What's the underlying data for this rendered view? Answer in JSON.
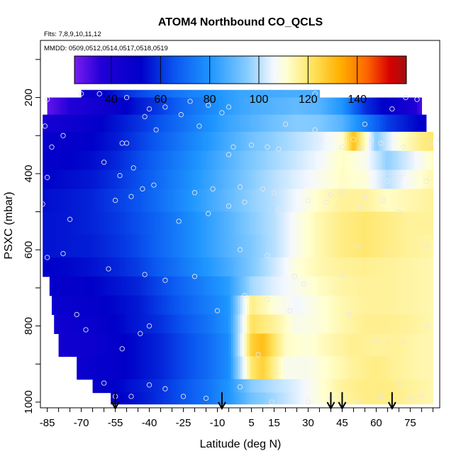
{
  "chart_data": {
    "type": "heatmap",
    "title": "ATOM4 Northbound CO_QCLS",
    "subtitle_flights": "Flts: 7,8,9,10,11,12",
    "subtitle_dates": "MMDD: 0509,0512,0514,0517,0518,0519",
    "xlabel": "Latitude (deg N)",
    "ylabel": "PSXC (mbar)",
    "x_ticks": [
      "-85",
      "-70",
      "-55",
      "-40",
      "-25",
      "-10",
      "5",
      "15",
      "30",
      "45",
      "60",
      "75"
    ],
    "x_tick_values": [
      -85,
      -70,
      -55,
      -40,
      -25,
      -10,
      5,
      15,
      30,
      45,
      60,
      75
    ],
    "y_ticks": [
      "200",
      "400",
      "600",
      "800",
      "1000"
    ],
    "y_tick_values": [
      200,
      400,
      600,
      800,
      1000
    ],
    "xlim": [
      -88,
      88
    ],
    "ylim": [
      1015,
      50
    ],
    "y_reversed": true,
    "colorbar": {
      "range": [
        25,
        160
      ],
      "tick_labels": [
        "40",
        "60",
        "80",
        "100",
        "120",
        "140"
      ],
      "tick_values": [
        40,
        60,
        80,
        100,
        120,
        140
      ]
    },
    "color_scale_note": "CO mixing ratio; purple/blue low, white ~100, yellow/orange/red high",
    "profile_bands": [
      {
        "p_top": 180,
        "p_bot": 200,
        "x": [
          -70,
          -60,
          -50,
          -40,
          -30,
          -20,
          -10,
          0,
          10,
          20,
          35
        ],
        "values": [
          45,
          52,
          60,
          66,
          72,
          76,
          80,
          84,
          85,
          86,
          86
        ]
      },
      {
        "p_top": 200,
        "p_bot": 245,
        "x": [
          -85,
          -75,
          -65,
          -55,
          -45,
          -35,
          -25,
          -15,
          -5,
          5,
          15,
          25,
          35,
          45,
          55,
          65,
          75,
          80
        ],
        "values": [
          28,
          35,
          42,
          48,
          56,
          62,
          70,
          76,
          82,
          86,
          88,
          90,
          88,
          80,
          60,
          50,
          40,
          30
        ]
      },
      {
        "p_top": 245,
        "p_bot": 290,
        "x": [
          -87,
          -75,
          -65,
          -55,
          -45,
          -35,
          -25,
          -15,
          -5,
          5,
          15,
          25,
          35,
          45,
          55,
          65,
          75,
          82
        ],
        "values": [
          40,
          45,
          50,
          55,
          60,
          66,
          72,
          78,
          84,
          88,
          92,
          95,
          94,
          88,
          75,
          62,
          55,
          50
        ]
      },
      {
        "p_top": 290,
        "p_bot": 340,
        "x": [
          -87,
          -75,
          -65,
          -55,
          -45,
          -35,
          -25,
          -15,
          -5,
          5,
          15,
          25,
          35,
          45,
          50,
          60,
          70,
          80,
          85
        ],
        "values": [
          48,
          50,
          52,
          56,
          62,
          68,
          74,
          80,
          86,
          92,
          96,
          100,
          104,
          110,
          130,
          95,
          110,
          118,
          120
        ]
      },
      {
        "p_top": 340,
        "p_bot": 390,
        "x": [
          -87,
          -75,
          -65,
          -55,
          -45,
          -35,
          -25,
          -15,
          -5,
          5,
          15,
          25,
          35,
          45,
          55,
          65,
          75,
          85
        ],
        "values": [
          50,
          52,
          54,
          58,
          64,
          70,
          76,
          82,
          88,
          94,
          98,
          102,
          106,
          112,
          108,
          96,
          104,
          112
        ]
      },
      {
        "p_top": 390,
        "p_bot": 440,
        "x": [
          -87,
          -75,
          -65,
          -55,
          -45,
          -35,
          -25,
          -15,
          -5,
          5,
          15,
          25,
          35,
          45,
          55,
          65,
          75,
          85
        ],
        "values": [
          52,
          54,
          56,
          60,
          65,
          71,
          77,
          83,
          89,
          95,
          100,
          104,
          108,
          112,
          110,
          100,
          108,
          114
        ]
      },
      {
        "p_top": 440,
        "p_bot": 500,
        "x": [
          -87,
          -75,
          -65,
          -55,
          -45,
          -35,
          -25,
          -15,
          -5,
          5,
          15,
          25,
          35,
          45,
          55,
          65,
          75,
          85
        ],
        "values": [
          54,
          56,
          58,
          62,
          66,
          72,
          78,
          84,
          90,
          96,
          100,
          106,
          112,
          116,
          116,
          112,
          114,
          116
        ]
      },
      {
        "p_top": 500,
        "p_bot": 560,
        "x": [
          -87,
          -75,
          -65,
          -55,
          -45,
          -35,
          -25,
          -15,
          -5,
          5,
          15,
          25,
          35,
          45,
          55,
          65,
          75,
          85
        ],
        "values": [
          55,
          56,
          58,
          61,
          65,
          70,
          76,
          82,
          88,
          95,
          100,
          108,
          114,
          118,
          120,
          118,
          116,
          116
        ]
      },
      {
        "p_top": 560,
        "p_bot": 620,
        "x": [
          -87,
          -75,
          -65,
          -55,
          -45,
          -35,
          -25,
          -15,
          -5,
          5,
          15,
          25,
          35,
          45,
          55,
          65,
          75,
          85
        ],
        "values": [
          55,
          56,
          57,
          60,
          64,
          70,
          76,
          82,
          88,
          94,
          100,
          108,
          114,
          118,
          120,
          118,
          116,
          115
        ]
      },
      {
        "p_top": 620,
        "p_bot": 670,
        "x": [
          -87,
          -75,
          -65,
          -55,
          -45,
          -35,
          -25,
          -15,
          -5,
          5,
          15,
          25,
          35,
          45,
          55,
          65,
          75,
          85
        ],
        "values": [
          52,
          53,
          55,
          58,
          62,
          68,
          74,
          80,
          86,
          94,
          102,
          110,
          114,
          116,
          117,
          116,
          115,
          114
        ]
      },
      {
        "p_top": 670,
        "p_bot": 720,
        "x": [
          -84,
          -75,
          -65,
          -55,
          -45,
          -35,
          -25,
          -15,
          -5,
          5,
          15,
          25,
          35,
          45,
          55,
          65,
          75,
          85
        ],
        "values": [
          50,
          50,
          52,
          55,
          58,
          64,
          70,
          76,
          82,
          98,
          104,
          108,
          112,
          115,
          116,
          116,
          115,
          114
        ]
      },
      {
        "p_top": 720,
        "p_bot": 770,
        "x": [
          -83,
          -75,
          -65,
          -55,
          -45,
          -35,
          -25,
          -15,
          -5,
          5,
          15,
          25,
          35,
          45,
          55,
          65,
          75,
          85
        ],
        "values": [
          47,
          48,
          50,
          53,
          56,
          62,
          68,
          74,
          80,
          118,
          110,
          106,
          110,
          114,
          116,
          116,
          115,
          114
        ]
      },
      {
        "p_top": 770,
        "p_bot": 820,
        "x": [
          -82,
          -75,
          -65,
          -55,
          -45,
          -35,
          -25,
          -15,
          -5,
          5,
          15,
          25,
          35,
          45,
          55,
          65,
          75,
          85
        ],
        "values": [
          44,
          46,
          48,
          52,
          56,
          60,
          66,
          72,
          80,
          122,
          116,
          108,
          110,
          114,
          117,
          117,
          116,
          114
        ]
      },
      {
        "p_top": 820,
        "p_bot": 880,
        "x": [
          -80,
          -72,
          -65,
          -55,
          -45,
          -35,
          -25,
          -15,
          -5,
          5,
          10,
          20,
          30,
          40,
          50,
          60,
          70,
          80,
          85
        ],
        "values": [
          44,
          45,
          46,
          50,
          54,
          58,
          64,
          70,
          78,
          126,
          130,
          112,
          110,
          114,
          117,
          116,
          116,
          114,
          114
        ]
      },
      {
        "p_top": 880,
        "p_bot": 940,
        "x": [
          -72,
          -65,
          -55,
          -45,
          -35,
          -25,
          -15,
          -5,
          5,
          10,
          20,
          30,
          40,
          50,
          60,
          70,
          80,
          85
        ],
        "values": [
          46,
          48,
          50,
          54,
          58,
          64,
          70,
          78,
          120,
          126,
          108,
          108,
          112,
          116,
          118,
          116,
          114,
          114
        ]
      },
      {
        "p_top": 940,
        "p_bot": 975,
        "x": [
          -65,
          -55,
          -45,
          -35,
          -25,
          -15,
          -5,
          5,
          15,
          25,
          35,
          45,
          55,
          65,
          75,
          85
        ],
        "values": [
          48,
          52,
          56,
          60,
          66,
          72,
          80,
          95,
          100,
          104,
          110,
          116,
          118,
          118,
          116,
          114
        ]
      },
      {
        "p_top": 975,
        "p_bot": 1005,
        "x": [
          -57,
          -45,
          -35,
          -25,
          -15,
          -5,
          5,
          15,
          25,
          35,
          45,
          55,
          65,
          75,
          85
        ],
        "values": [
          50,
          55,
          60,
          66,
          72,
          80,
          92,
          98,
          104,
          110,
          115,
          118,
          118,
          116,
          114
        ]
      }
    ],
    "sample_points": [
      [
        -85,
        205
      ],
      [
        -70,
        190
      ],
      [
        -62,
        190
      ],
      [
        -50,
        200
      ],
      [
        -40,
        230
      ],
      [
        -33,
        225
      ],
      [
        -22,
        210
      ],
      [
        -14,
        220
      ],
      [
        -5,
        225
      ],
      [
        33,
        190
      ],
      [
        -86,
        275
      ],
      [
        -78,
        300
      ],
      [
        -42,
        250
      ],
      [
        -26,
        245
      ],
      [
        -8,
        240
      ],
      [
        -37,
        285
      ],
      [
        -18,
        275
      ],
      [
        20,
        270
      ],
      [
        33,
        285
      ],
      [
        55,
        270
      ],
      [
        73,
        200
      ],
      [
        78,
        205
      ],
      [
        67,
        230
      ],
      [
        -83,
        330
      ],
      [
        -60,
        370
      ],
      [
        -52,
        320
      ],
      [
        -50,
        320
      ],
      [
        -47,
        385
      ],
      [
        -5,
        350
      ],
      [
        -3,
        330
      ],
      [
        5,
        325
      ],
      [
        12,
        330
      ],
      [
        17,
        335
      ],
      [
        35,
        310
      ],
      [
        45,
        330
      ],
      [
        50,
        310
      ],
      [
        53,
        335
      ],
      [
        58,
        310
      ],
      [
        62,
        320
      ],
      [
        72,
        330
      ],
      [
        75,
        355
      ],
      [
        84,
        320
      ],
      [
        88,
        310
      ],
      [
        -85,
        410
      ],
      [
        -53,
        405
      ],
      [
        -43,
        440
      ],
      [
        -38,
        430
      ],
      [
        -20,
        450
      ],
      [
        -12,
        440
      ],
      [
        0,
        435
      ],
      [
        10,
        440
      ],
      [
        15,
        450
      ],
      [
        30,
        470
      ],
      [
        40,
        455
      ],
      [
        45,
        450
      ],
      [
        55,
        460
      ],
      [
        65,
        420
      ],
      [
        70,
        410
      ],
      [
        72,
        400
      ],
      [
        82,
        420
      ],
      [
        -87,
        480
      ],
      [
        -75,
        520
      ],
      [
        -55,
        470
      ],
      [
        -48,
        460
      ],
      [
        -27,
        525
      ],
      [
        -14,
        505
      ],
      [
        -5,
        485
      ],
      [
        2,
        475
      ],
      [
        17,
        495
      ],
      [
        38,
        475
      ],
      [
        53,
        490
      ],
      [
        63,
        470
      ],
      [
        70,
        500
      ],
      [
        -85,
        620
      ],
      [
        -78,
        610
      ],
      [
        -58,
        650
      ],
      [
        -42,
        665
      ],
      [
        -33,
        680
      ],
      [
        -20,
        670
      ],
      [
        0,
        600
      ],
      [
        12,
        615
      ],
      [
        24,
        670
      ],
      [
        28,
        690
      ],
      [
        45,
        670
      ],
      [
        52,
        590
      ],
      [
        65,
        610
      ],
      [
        82,
        590
      ],
      [
        -72,
        770
      ],
      [
        -68,
        810
      ],
      [
        -52,
        860
      ],
      [
        -44,
        820
      ],
      [
        -40,
        800
      ],
      [
        -10,
        760
      ],
      [
        2,
        720
      ],
      [
        12,
        730
      ],
      [
        22,
        760
      ],
      [
        48,
        770
      ],
      [
        60,
        840
      ],
      [
        65,
        840
      ],
      [
        72,
        840
      ],
      [
        83,
        800
      ],
      [
        -60,
        950
      ],
      [
        -55,
        985
      ],
      [
        -48,
        985
      ],
      [
        -40,
        955
      ],
      [
        -33,
        965
      ],
      [
        -25,
        985
      ],
      [
        -15,
        990
      ],
      [
        0,
        960
      ],
      [
        8,
        875
      ],
      [
        14,
        1000
      ],
      [
        30,
        1000
      ],
      [
        40,
        990
      ],
      [
        52,
        1000
      ],
      [
        62,
        985
      ],
      [
        70,
        950
      ],
      [
        75,
        990
      ],
      [
        80,
        985
      ]
    ],
    "arrows_x": [
      -55,
      -8,
      40,
      45,
      67
    ]
  }
}
